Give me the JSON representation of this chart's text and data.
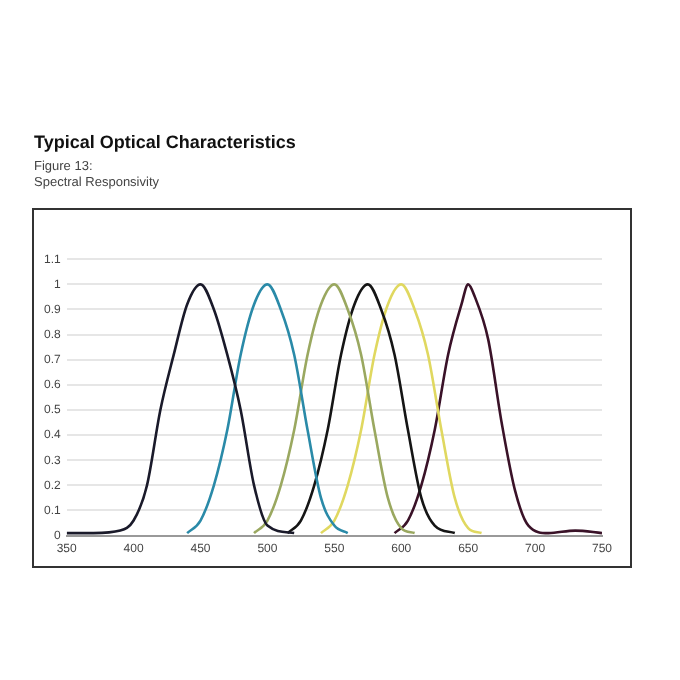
{
  "chart_data": {
    "type": "line",
    "title": "Typical Optical Characteristics",
    "subtitle": "Figure 13:\nSpectral Responsivity",
    "xlim": [
      350,
      750
    ],
    "xticks": [
      350,
      400,
      450,
      500,
      550,
      600,
      650,
      700,
      750
    ],
    "ylim": [
      0,
      1.1
    ],
    "yticks": [
      0,
      0.1,
      0.2,
      0.3,
      0.4,
      0.5,
      0.6,
      0.7,
      0.8,
      0.9,
      1,
      1.1
    ],
    "grid": "y",
    "legend": false,
    "marker": "none",
    "line_style": "solid",
    "series": [
      {
        "color": "#1a1a2a",
        "x": [
          350,
          370,
          390,
          400,
          410,
          420,
          430,
          440,
          450,
          460,
          470,
          480,
          490,
          500,
          520
        ],
        "values": [
          0.01,
          0.01,
          0.02,
          0.06,
          0.2,
          0.5,
          0.72,
          0.92,
          1,
          0.9,
          0.72,
          0.5,
          0.2,
          0.04,
          0.01
        ]
      },
      {
        "color": "#2a8aa8",
        "x": [
          440,
          450,
          460,
          470,
          480,
          490,
          500,
          510,
          520,
          530,
          540,
          550,
          560
        ],
        "values": [
          0.01,
          0.06,
          0.2,
          0.42,
          0.72,
          0.92,
          1,
          0.9,
          0.72,
          0.42,
          0.15,
          0.04,
          0.01
        ]
      },
      {
        "color": "#9aa860",
        "x": [
          490,
          500,
          510,
          520,
          530,
          540,
          550,
          560,
          570,
          580,
          590,
          600,
          610
        ],
        "values": [
          0.01,
          0.06,
          0.2,
          0.42,
          0.72,
          0.92,
          1,
          0.9,
          0.72,
          0.42,
          0.15,
          0.03,
          0.01
        ]
      },
      {
        "color": "#151515",
        "x": [
          515,
          525,
          535,
          545,
          555,
          565,
          575,
          585,
          595,
          605,
          615,
          625,
          640
        ],
        "values": [
          0.01,
          0.06,
          0.2,
          0.42,
          0.72,
          0.92,
          1,
          0.9,
          0.72,
          0.42,
          0.15,
          0.04,
          0.01
        ]
      },
      {
        "color": "#e0d860",
        "x": [
          540,
          550,
          560,
          570,
          580,
          590,
          600,
          610,
          620,
          630,
          640,
          650,
          660
        ],
        "values": [
          0.01,
          0.06,
          0.2,
          0.42,
          0.72,
          0.92,
          1,
          0.9,
          0.72,
          0.42,
          0.15,
          0.03,
          0.01
        ]
      },
      {
        "color": "#3a1228",
        "x": [
          595,
          605,
          615,
          625,
          635,
          645,
          650,
          655,
          665,
          675,
          685,
          695,
          710,
          730,
          750
        ],
        "values": [
          0.01,
          0.06,
          0.2,
          0.42,
          0.72,
          0.92,
          1,
          0.95,
          0.78,
          0.45,
          0.18,
          0.04,
          0.01,
          0.02,
          0.01
        ]
      }
    ]
  }
}
